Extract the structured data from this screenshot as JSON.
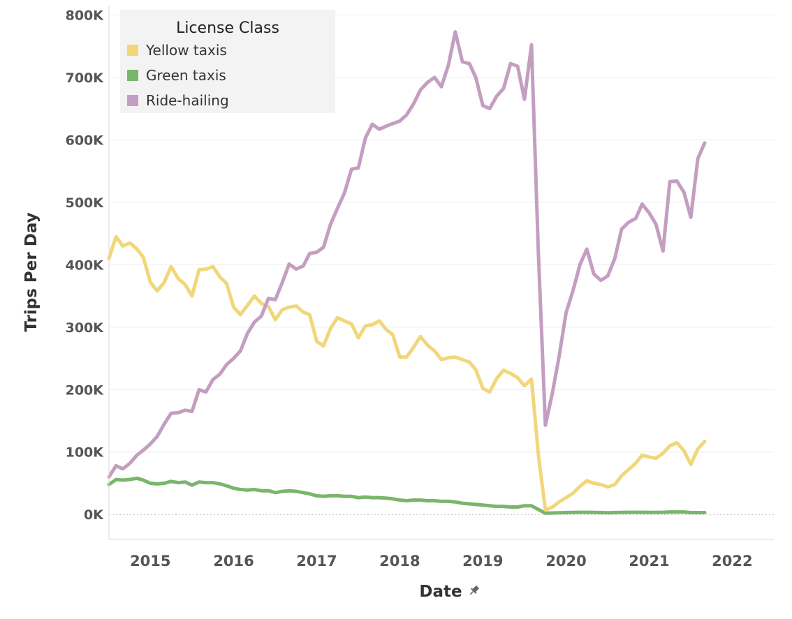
{
  "chart_data": {
    "type": "line",
    "xlabel": "Date",
    "ylabel": "Trips Per Day",
    "xlim": [
      "2014-10-01",
      "2022-10-01"
    ],
    "ylim": [
      -40000,
      815000
    ],
    "y_ticks": [
      0,
      100000,
      200000,
      300000,
      400000,
      500000,
      600000,
      700000,
      800000
    ],
    "y_tick_labels": [
      "0K",
      "100K",
      "200K",
      "300K",
      "400K",
      "500K",
      "600K",
      "700K",
      "800K"
    ],
    "x_tick_labels": [
      "2015",
      "2016",
      "2017",
      "2018",
      "2019",
      "2020",
      "2021",
      "2022"
    ],
    "grid": true,
    "legend": {
      "title": "License Class",
      "position": "top-left"
    },
    "start_date": "2014-10",
    "series": [
      {
        "name": "Yellow taxis",
        "color": "#f1d77a",
        "values": [
          410000,
          445000,
          430000,
          435000,
          425000,
          412000,
          372000,
          358000,
          372000,
          397000,
          378000,
          368000,
          350000,
          392000,
          393000,
          397000,
          380000,
          370000,
          332000,
          320000,
          335000,
          350000,
          338000,
          333000,
          312000,
          328000,
          332000,
          334000,
          324000,
          320000,
          277000,
          270000,
          298000,
          315000,
          310000,
          305000,
          283000,
          302000,
          304000,
          310000,
          296000,
          288000,
          252000,
          252000,
          268000,
          285000,
          271000,
          262000,
          248000,
          251000,
          252000,
          248000,
          244000,
          232000,
          202000,
          196000,
          218000,
          231000,
          226000,
          219000,
          206000,
          217000,
          96000,
          7000,
          12000,
          20000,
          27000,
          34000,
          45000,
          54000,
          50000,
          48000,
          44000,
          48000,
          62000,
          72000,
          82000,
          95000,
          92000,
          90000,
          98000,
          110000,
          115000,
          102000,
          80000,
          105000,
          117000
        ]
      },
      {
        "name": "Green taxis",
        "color": "#79b66c",
        "values": [
          48000,
          56000,
          55000,
          56000,
          58000,
          55000,
          50000,
          49000,
          50000,
          53000,
          51000,
          52000,
          47000,
          52000,
          51000,
          51000,
          49000,
          46000,
          42000,
          40000,
          39000,
          40000,
          38000,
          38000,
          35000,
          37000,
          38000,
          37000,
          35000,
          33000,
          30000,
          29000,
          30000,
          30000,
          29000,
          29000,
          27000,
          28000,
          27000,
          27000,
          26000,
          25000,
          23000,
          22000,
          23000,
          23000,
          22000,
          22000,
          21000,
          21000,
          20000,
          18000,
          17000,
          16000,
          15000,
          14000,
          13000,
          13000,
          12000,
          12000,
          14000,
          14000,
          8000,
          2000,
          2500,
          2800,
          3000,
          3200,
          3500,
          3500,
          3200,
          3000,
          2800,
          3000,
          3200,
          3500,
          3500,
          3500,
          3300,
          3300,
          3500,
          4000,
          4000,
          4000,
          3000,
          3000,
          3000
        ]
      },
      {
        "name": "Ride-hailing",
        "color": "#c49ec0",
        "values": [
          60000,
          78000,
          73000,
          82000,
          95000,
          103000,
          113000,
          125000,
          145000,
          162000,
          163000,
          167000,
          165000,
          200000,
          196000,
          216000,
          225000,
          240000,
          250000,
          262000,
          290000,
          308000,
          318000,
          346000,
          344000,
          372000,
          401000,
          393000,
          398000,
          418000,
          420000,
          428000,
          465000,
          490000,
          515000,
          553000,
          555000,
          603000,
          625000,
          617000,
          622000,
          626000,
          630000,
          640000,
          658000,
          680000,
          692000,
          700000,
          685000,
          720000,
          773000,
          725000,
          722000,
          700000,
          655000,
          650000,
          670000,
          682000,
          722000,
          718000,
          665000,
          752000,
          420000,
          143000,
          195000,
          252000,
          323000,
          358000,
          400000,
          425000,
          385000,
          375000,
          382000,
          410000,
          457000,
          468000,
          474000,
          497000,
          483000,
          465000,
          422000,
          533000,
          534000,
          516000,
          476000,
          570000,
          595000
        ]
      }
    ]
  }
}
